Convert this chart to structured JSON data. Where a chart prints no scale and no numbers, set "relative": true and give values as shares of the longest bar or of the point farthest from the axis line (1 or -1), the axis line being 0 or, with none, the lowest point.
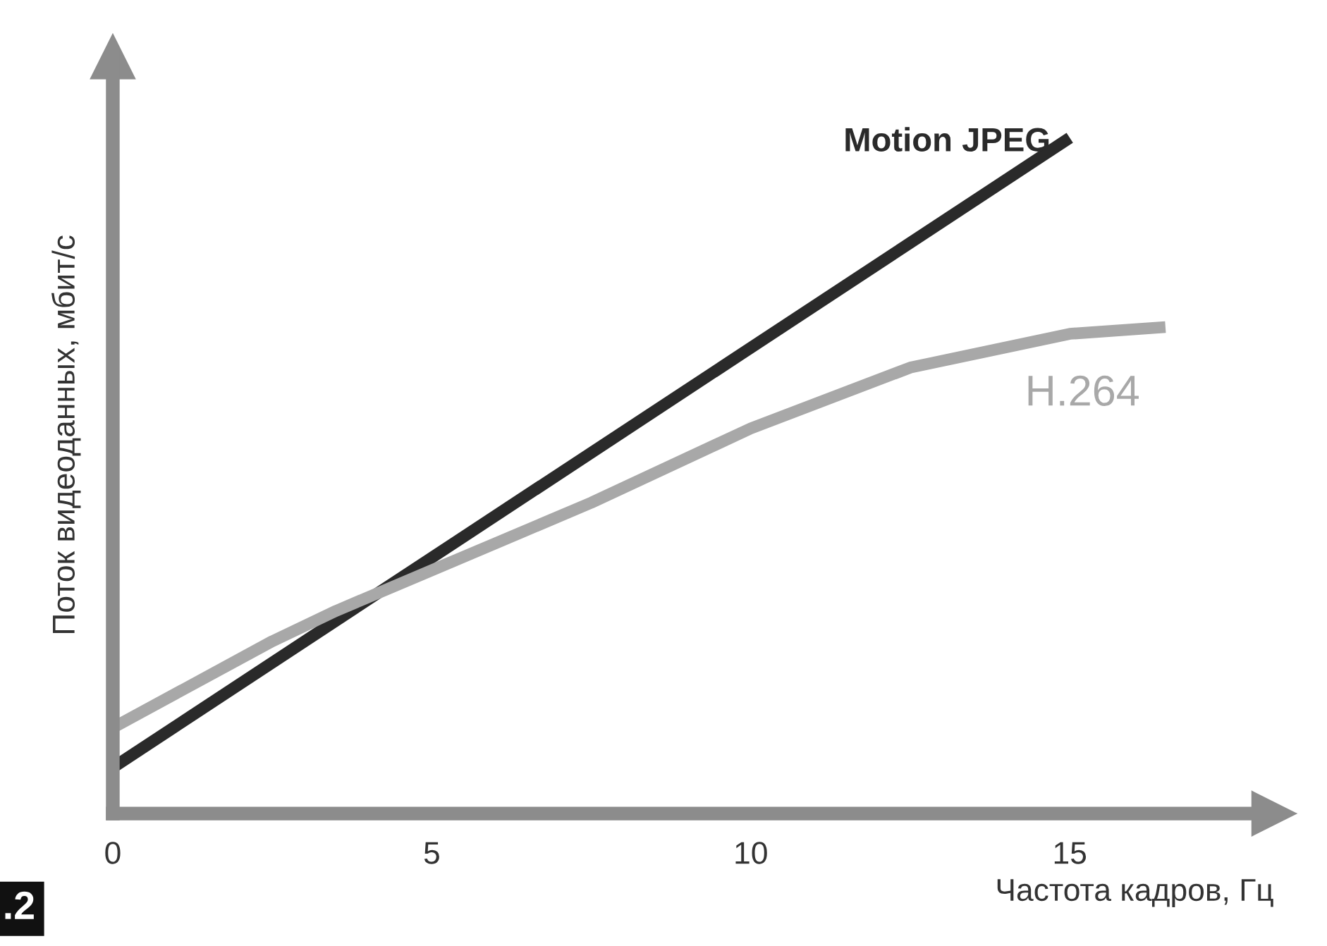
{
  "chart_data": {
    "type": "line",
    "relative": true,
    "xlabel": "Частота кадров, Гц",
    "ylabel": "Поток видеоданных, мбит/с",
    "xlim": [
      0,
      18.2
    ],
    "xticks": [
      0,
      5,
      10,
      15
    ],
    "grid": false,
    "legend": false,
    "line_style": "solid",
    "marker": "none",
    "series": [
      {
        "name": "Motion JPEG",
        "color": "#2a2a2a",
        "x": [
          0,
          15
        ],
        "values": [
          0.068,
          1
        ]
      },
      {
        "name": "H.264",
        "color": "#a8a8a8",
        "x": [
          0,
          2.5,
          3.5,
          5,
          7.5,
          10,
          12.5,
          15,
          16.5
        ],
        "values": [
          0.127,
          0.255,
          0.3,
          0.36,
          0.46,
          0.57,
          0.66,
          0.71,
          0.72
        ]
      }
    ],
    "annotations": [
      ".2"
    ]
  }
}
